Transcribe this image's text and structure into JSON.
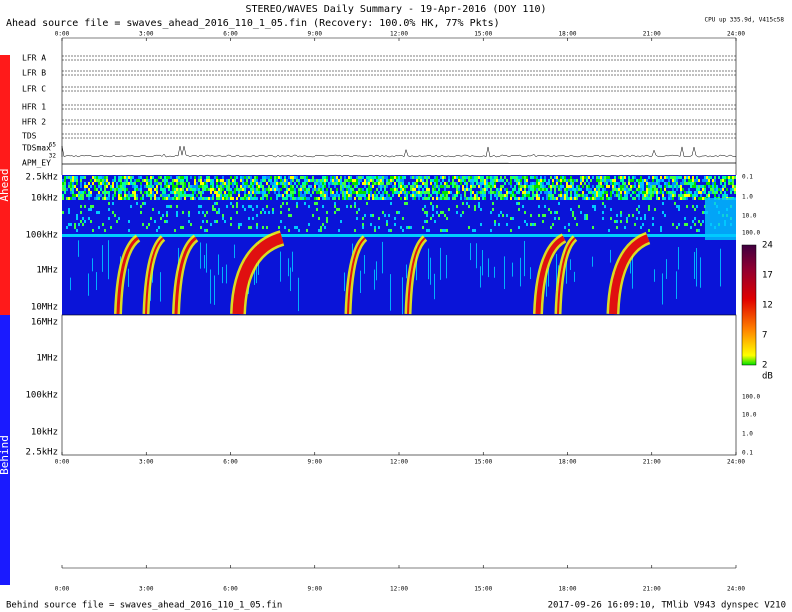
{
  "header": {
    "title": "STEREO/WAVES Daily Summary - 19-Apr-2016 (DOY 110)",
    "source": "Ahead source file = swaves_ahead_2016_110_1_05.fin (Recovery: 100.0% HK, 77% Pkts)",
    "cpu": "CPU up 335.9d, V415c58"
  },
  "time_ticks": [
    "0:00",
    "3:00",
    "6:00",
    "9:00",
    "12:00",
    "15:00",
    "18:00",
    "21:00",
    "24:00"
  ],
  "side_labels": [
    "Ahead",
    "Behind"
  ],
  "panels": [
    "LFR A",
    "LFR B",
    "LFR C",
    "HFR 1",
    "HFR 2",
    "TDS",
    "TDSmax",
    "APM_EY"
  ],
  "tdsmax_ticks": [
    "65",
    "32"
  ],
  "ahead_freq": [
    "2.5kHz",
    "10kHz",
    "100kHz",
    "1MHz",
    "10MHz"
  ],
  "behind_freq": [
    "16MHz",
    "1MHz",
    "100kHz",
    "10kHz",
    "2.5kHz"
  ],
  "ahead_right": [
    "0.1",
    "1.0",
    "10.0",
    "100.0"
  ],
  "behind_right": [
    "100.0",
    "10.0",
    "1.0",
    "0.1"
  ],
  "colorbar": {
    "ticks": [
      "24",
      "17",
      "12",
      "7",
      "2"
    ],
    "unit": "dB"
  },
  "footer": {
    "left": "Behind source file = swaves_ahead_2016_110_1_05.fin",
    "right": "2017-09-26 16:09:10, TMlib V943 dynspec V210"
  }
}
